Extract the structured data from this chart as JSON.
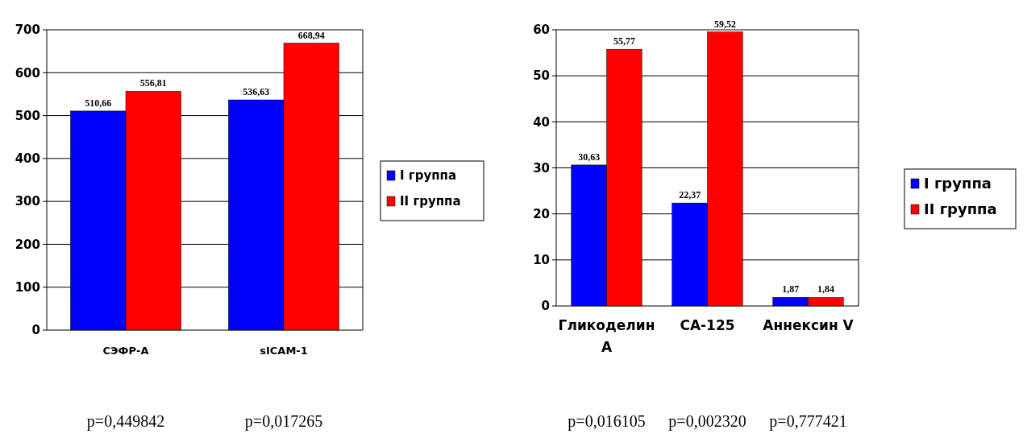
{
  "chart_data": [
    {
      "type": "bar",
      "categories": [
        "СЭФР-А",
        "sICAM-1"
      ],
      "series": [
        {
          "name": "I группа",
          "color": "#0000ff",
          "values": [
            510.66,
            536.63
          ],
          "value_labels": [
            "510,66",
            "536,63"
          ]
        },
        {
          "name": "II группа",
          "color": "#ff0000",
          "values": [
            556.81,
            668.94
          ],
          "value_labels": [
            "556,81",
            "668,94"
          ]
        }
      ],
      "ylim": [
        0,
        700
      ],
      "yticks": [
        0,
        100,
        200,
        300,
        400,
        500,
        600,
        700
      ],
      "grid": "y",
      "legend": "right",
      "annotations": [
        "p=0,449842",
        "p=0,017265"
      ]
    },
    {
      "type": "bar",
      "categories": [
        "Гликоделин А",
        "СА-125",
        "Аннексин V"
      ],
      "series": [
        {
          "name": "I группа",
          "color": "#0000ff",
          "values": [
            30.63,
            22.37,
            1.87
          ],
          "value_labels": [
            "30,63",
            "22,37",
            "1,87"
          ]
        },
        {
          "name": "II группа",
          "color": "#ff0000",
          "values": [
            55.77,
            59.52,
            1.84
          ],
          "value_labels": [
            "55,77",
            "59,52",
            "1,84"
          ]
        }
      ],
      "ylim": [
        0,
        60
      ],
      "yticks": [
        0,
        10,
        20,
        30,
        40,
        50,
        60
      ],
      "grid": "y",
      "legend": "right",
      "annotations": [
        "p=0,016105",
        "p=0,002320",
        "p=0,777421"
      ]
    }
  ]
}
